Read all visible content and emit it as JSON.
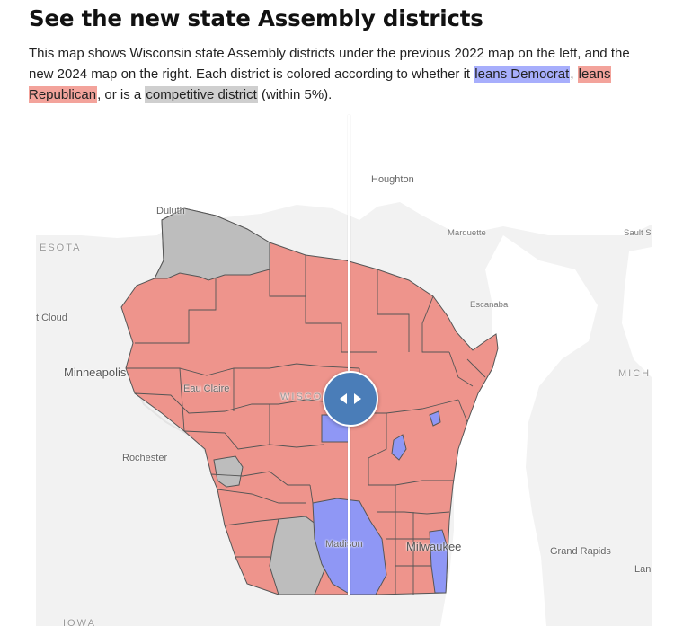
{
  "title": "See the new state Assembly districts",
  "intro": {
    "text_1": "This map shows Wisconsin state Assembly districts under the previous 2022 map on the left, and the new 2024 map on the right. Each district is colored according to whether it ",
    "dem_label": "leans Democrat",
    "text_2": ", ",
    "rep_label": "leans Republican",
    "text_3": ", or is a ",
    "comp_label": "competitive district",
    "text_4": " (within 5%)."
  },
  "legend_colors": {
    "leans_democrat": "#a7aefc",
    "leans_republican": "#f3a39b",
    "competitive": "#cfcfcf"
  },
  "map": {
    "district_colors": {
      "democrat": "#8f97f5",
      "republican": "#ee948c",
      "competitive": "#bdbdbd"
    },
    "places": {
      "duluth": "Duluth",
      "houghton": "Houghton",
      "marquette": "Marquette",
      "sault": "Sault S",
      "minnesota": "ESOTA",
      "cloud": "t Cloud",
      "escanaba": "Escanaba",
      "minneapolis": "Minneapolis",
      "eau_claire": "Eau Claire",
      "wisconsin": "WISCO",
      "michigan": "MICH",
      "rochester": "Rochester",
      "madison": "Madison",
      "milwaukee": "Milwaukee",
      "grand_rapids": "Grand Rapids",
      "lansing": "Lan",
      "iowa": "IOWA"
    },
    "slider_icon": "left-right-arrows-icon"
  }
}
